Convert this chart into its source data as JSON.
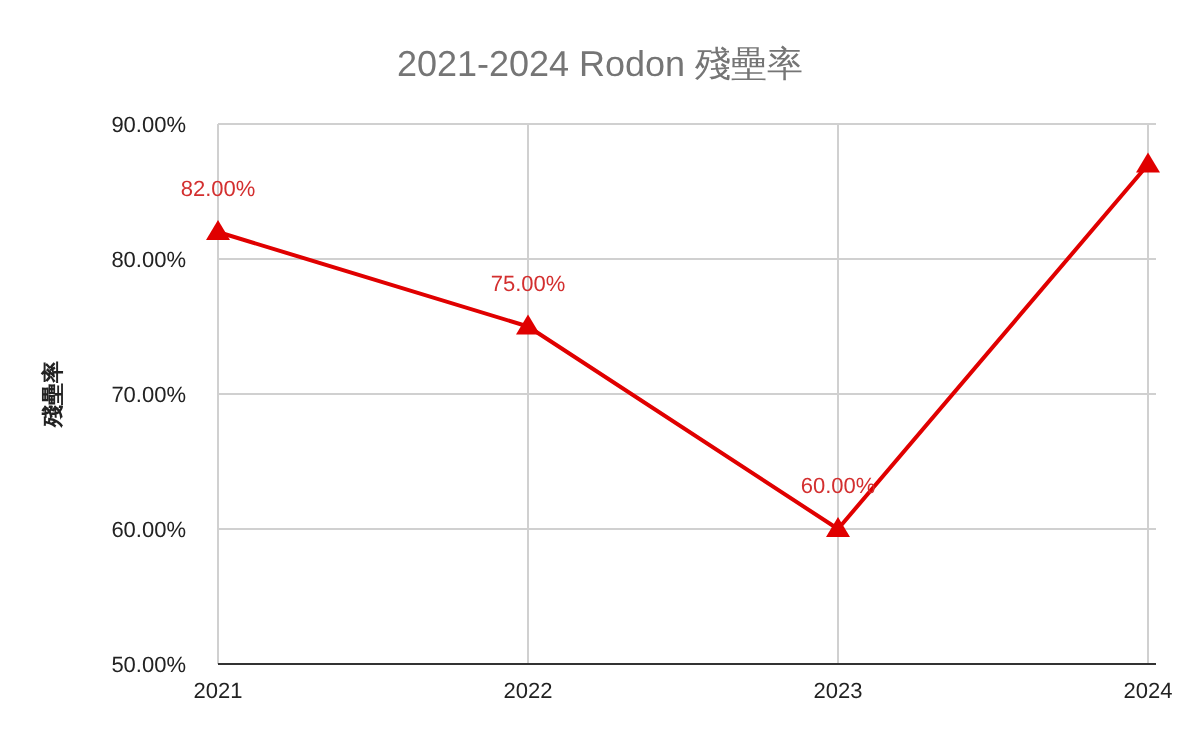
{
  "chart_data": {
    "type": "line",
    "title": "2021-2024 Rodon 殘壘率",
    "ylabel": "殘壘率",
    "categories": [
      "2021",
      "2022",
      "2023",
      "2024"
    ],
    "series": [
      {
        "color": "#e00000",
        "values": [
          82,
          75,
          60,
          87
        ],
        "value_labels": [
          "82.00%",
          "75.00%",
          "60.00%",
          null
        ]
      }
    ],
    "ylim": [
      50,
      90
    ],
    "yticks": [
      {
        "value": 50,
        "label": "50.00%"
      },
      {
        "value": 60,
        "label": "60.00%"
      },
      {
        "value": 70,
        "label": "70.00%"
      },
      {
        "value": 80,
        "label": "80.00%"
      },
      {
        "value": 90,
        "label": "90.00%"
      }
    ],
    "grid": true,
    "marker": "triangle",
    "line_style": "solid"
  }
}
